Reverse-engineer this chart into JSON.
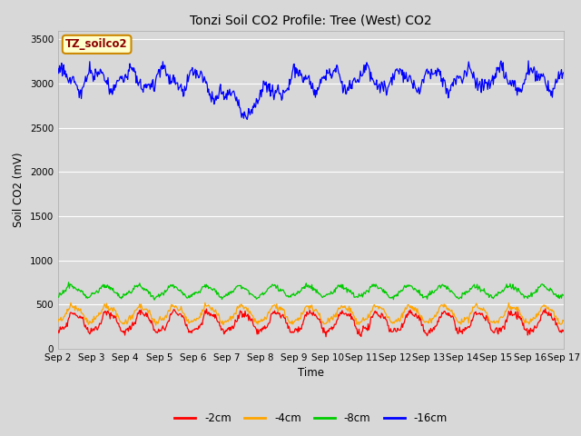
{
  "title": "Tonzi Soil CO2 Profile: Tree (West) CO2",
  "ylabel": "Soil CO2 (mV)",
  "xlabel": "Time",
  "xtick_labels": [
    "Sep 2",
    "Sep 3",
    "Sep 4",
    "Sep 5",
    "Sep 6",
    "Sep 7",
    "Sep 8",
    "Sep 9",
    "Sep 10",
    "Sep 11",
    "Sep 12",
    "Sep 13",
    "Sep 14",
    "Sep 15",
    "Sep 16",
    "Sep 17"
  ],
  "ylim": [
    0,
    3600
  ],
  "yticks": [
    0,
    500,
    1000,
    1500,
    2000,
    2500,
    3000,
    3500
  ],
  "colors": {
    "neg2cm": "#ff0000",
    "neg4cm": "#ffa500",
    "neg8cm": "#00cc00",
    "neg16cm": "#0000ff"
  },
  "legend_labels": [
    "-2cm",
    "-4cm",
    "-8cm",
    "-16cm"
  ],
  "watermark_text": "TZ_soilco2",
  "background_color": "#d8d8d8",
  "plot_bg_color": "#d8d8d8",
  "n_points": 720,
  "figwidth": 6.4,
  "figheight": 4.8,
  "dpi": 100
}
